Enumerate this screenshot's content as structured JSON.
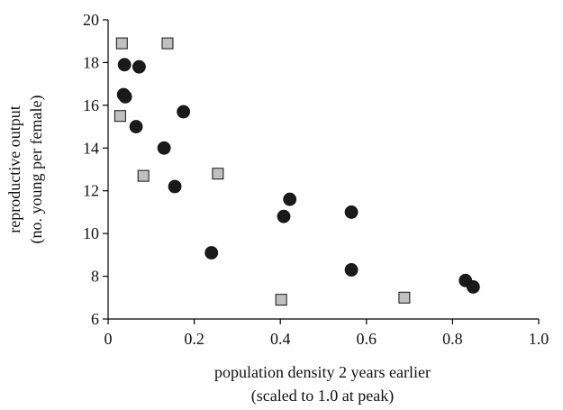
{
  "chart_data": {
    "type": "scatter",
    "title": "",
    "xlabel_lines": [
      "population density 2 years earlier",
      "(scaled to 1.0 at peak)"
    ],
    "ylabel_lines": [
      "reproductive output",
      "(no. young per female)"
    ],
    "xlim": [
      0,
      1.0
    ],
    "ylim": [
      6,
      20
    ],
    "xticks": [
      0,
      0.2,
      0.4,
      0.6,
      0.8,
      1.0
    ],
    "xtick_labels": [
      "0",
      "0.2",
      "0.4",
      "0.6",
      "0.8",
      "1.0"
    ],
    "yticks": [
      6,
      8,
      10,
      12,
      14,
      16,
      18,
      20
    ],
    "ytick_labels": [
      "6",
      "8",
      "10",
      "12",
      "14",
      "16",
      "18",
      "20"
    ],
    "grid": false,
    "legend": "none",
    "series": [
      {
        "marker": "circle",
        "color": "#1a1a1a",
        "points": [
          {
            "x": 0.038,
            "y": 17.9
          },
          {
            "x": 0.072,
            "y": 17.8
          },
          {
            "x": 0.036,
            "y": 16.5
          },
          {
            "x": 0.04,
            "y": 16.4
          },
          {
            "x": 0.065,
            "y": 15.0
          },
          {
            "x": 0.175,
            "y": 15.7
          },
          {
            "x": 0.13,
            "y": 14.0
          },
          {
            "x": 0.155,
            "y": 12.2
          },
          {
            "x": 0.422,
            "y": 11.6
          },
          {
            "x": 0.408,
            "y": 10.8
          },
          {
            "x": 0.565,
            "y": 11.0
          },
          {
            "x": 0.24,
            "y": 9.1
          },
          {
            "x": 0.565,
            "y": 8.3
          },
          {
            "x": 0.83,
            "y": 7.8
          },
          {
            "x": 0.848,
            "y": 7.5
          }
        ]
      },
      {
        "marker": "square",
        "color": "#c0c0c0",
        "points": [
          {
            "x": 0.032,
            "y": 18.9
          },
          {
            "x": 0.138,
            "y": 18.9
          },
          {
            "x": 0.028,
            "y": 15.5
          },
          {
            "x": 0.082,
            "y": 12.7
          },
          {
            "x": 0.255,
            "y": 12.8
          },
          {
            "x": 0.402,
            "y": 6.9
          },
          {
            "x": 0.688,
            "y": 7.0
          }
        ]
      }
    ]
  }
}
